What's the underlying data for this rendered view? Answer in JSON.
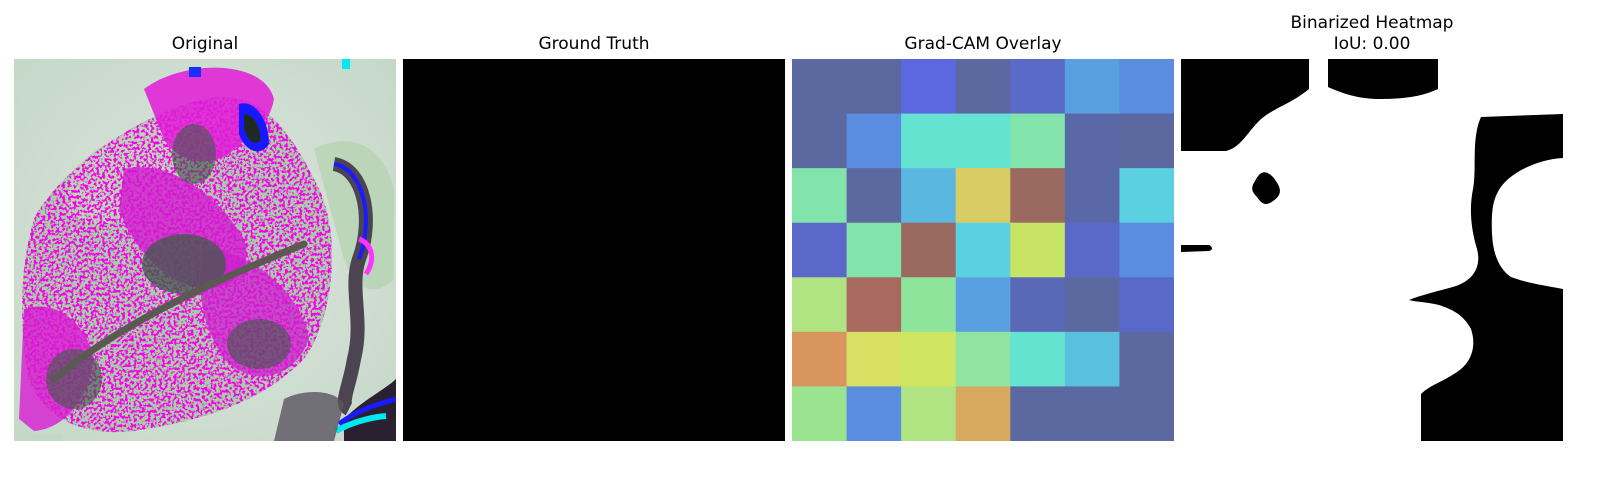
{
  "panels": [
    {
      "title": "Original"
    },
    {
      "title": "Ground Truth"
    },
    {
      "title": "Grad-CAM Overlay"
    },
    {
      "title": "Binarized Heatmap",
      "subtitle": "IoU: 0.00"
    }
  ],
  "gradcam": {
    "grid_size": 7,
    "colors": [
      [
        "#5c68a0",
        "#5c68a0",
        "#5c68e0",
        "#5c68a0",
        "#5a6ac8",
        "#5aa0e0",
        "#5a8ce0"
      ],
      [
        "#5c68a0",
        "#5a8ce0",
        "#64e4d0",
        "#64e4d0",
        "#82e4aa",
        "#5a68a8",
        "#5c68a0"
      ],
      [
        "#82e4aa",
        "#5c68a0",
        "#5ab8e0",
        "#d8cc64",
        "#9a6a60",
        "#5a68a8",
        "#5ad0e0"
      ],
      [
        "#5c68c8",
        "#82e4aa",
        "#9a6a60",
        "#5ad0e0",
        "#c8e464",
        "#5a68c8",
        "#5a8ce0"
      ],
      [
        "#b0e482",
        "#a86a60",
        "#8ee49a",
        "#5aa0e0",
        "#5a68b8",
        "#5c68a0",
        "#5a68c8"
      ],
      [
        "#d8965e",
        "#d8e064",
        "#d0e464",
        "#90e4a0",
        "#64e4d0",
        "#5ac0e0",
        "#5c68a0"
      ],
      [
        "#9ae490",
        "#5a8ce0",
        "#b0e482",
        "#d8aa60",
        "#5c68a0",
        "#5c68a0",
        "#5c68a0"
      ]
    ]
  },
  "colors": {
    "ground_truth": "#000000",
    "mask_foreground": "#ffffff",
    "mask_background": "#000000"
  }
}
